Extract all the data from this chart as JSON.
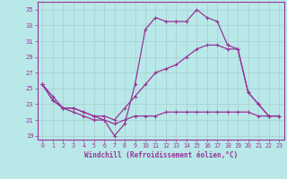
{
  "xlabel": "Windchill (Refroidissement éolien,°C)",
  "bg_color": "#b8e8e8",
  "line_color": "#993399",
  "xlim": [
    -0.5,
    23.5
  ],
  "ylim": [
    18.5,
    36.0
  ],
  "yticks": [
    19,
    21,
    23,
    25,
    27,
    29,
    31,
    33,
    35
  ],
  "xticks": [
    0,
    1,
    2,
    3,
    4,
    5,
    6,
    7,
    8,
    9,
    10,
    11,
    12,
    13,
    14,
    15,
    16,
    17,
    18,
    19,
    20,
    21,
    22,
    23
  ],
  "line1_x": [
    0,
    1,
    2,
    3,
    4,
    5,
    6,
    7,
    8,
    9,
    10,
    11,
    12,
    13,
    14,
    15,
    16,
    17,
    18,
    19,
    20,
    21,
    22,
    23
  ],
  "line1_y": [
    25.5,
    23.5,
    22.5,
    22.0,
    21.5,
    21.0,
    21.0,
    20.5,
    21.0,
    21.5,
    21.5,
    21.5,
    22.0,
    22.0,
    22.0,
    22.0,
    22.0,
    22.0,
    22.0,
    22.0,
    22.0,
    21.5,
    21.5,
    21.5
  ],
  "line2_x": [
    0,
    1,
    2,
    3,
    4,
    5,
    6,
    7,
    8,
    9,
    10,
    11,
    12,
    13,
    14,
    15,
    16,
    17,
    18,
    19,
    20,
    21,
    22,
    23
  ],
  "line2_y": [
    25.5,
    23.5,
    22.5,
    22.5,
    22.0,
    21.5,
    21.0,
    19.0,
    20.5,
    25.5,
    32.5,
    34.0,
    33.5,
    33.5,
    33.5,
    35.0,
    34.0,
    33.5,
    30.5,
    30.0,
    24.5,
    23.0,
    21.5,
    21.5
  ],
  "line3_x": [
    0,
    1,
    2,
    3,
    4,
    5,
    6,
    7,
    8,
    9,
    10,
    11,
    12,
    13,
    14,
    15,
    16,
    17,
    18,
    19,
    20,
    21,
    22,
    23
  ],
  "line3_y": [
    25.5,
    24.0,
    22.5,
    22.5,
    22.0,
    21.5,
    21.5,
    21.0,
    22.5,
    24.0,
    25.5,
    27.0,
    27.5,
    28.0,
    29.0,
    30.0,
    30.5,
    30.5,
    30.0,
    30.0,
    24.5,
    23.0,
    21.5,
    21.5
  ],
  "grid_color": "#aacccc",
  "spine_color": "#993399",
  "tick_color": "#993399",
  "label_fontsize": 4.8,
  "xlabel_fontsize": 5.5
}
